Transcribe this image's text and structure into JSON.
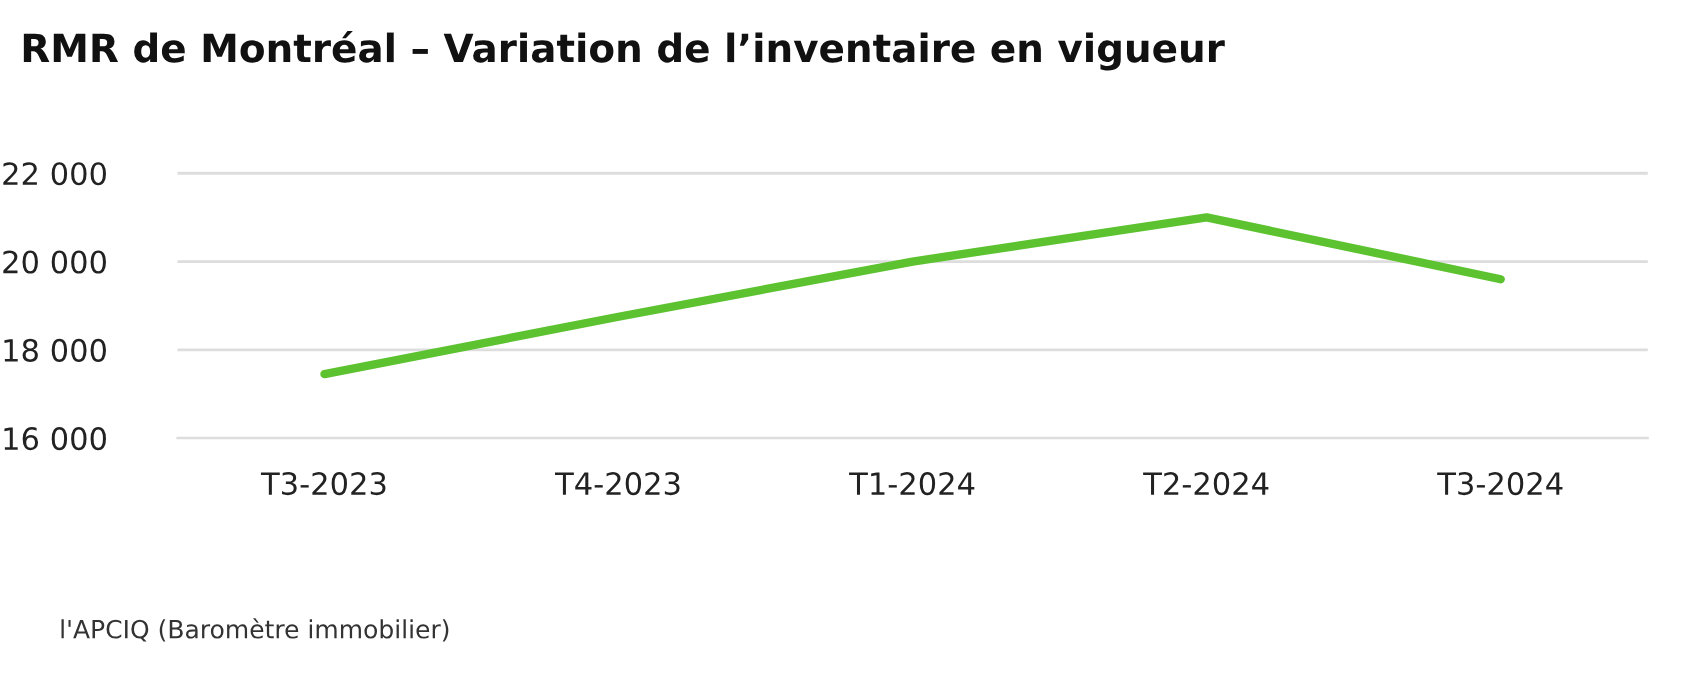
{
  "chart_data": {
    "type": "line",
    "title": "RMR de Montréal – Variation de l’inventaire en vigueur",
    "categories": [
      "T3-2023",
      "T4-2023",
      "T1-2024",
      "T2-2024",
      "T3-2024"
    ],
    "series": [
      {
        "color": "#5cc22f",
        "values": [
          17450,
          18750,
          20000,
          21000,
          19600
        ]
      }
    ],
    "ylim": [
      16000,
      22000
    ],
    "yticks": [
      {
        "value": 16000,
        "label": "16 000"
      },
      {
        "value": 18000,
        "label": "18 000"
      },
      {
        "value": 20000,
        "label": "20 000"
      },
      {
        "value": 22000,
        "label": "22 000"
      }
    ],
    "grid": "y",
    "marker": "none",
    "line_style": "solid",
    "annotations": [
      "l'APCIQ (Baromètre immobilier)"
    ]
  }
}
